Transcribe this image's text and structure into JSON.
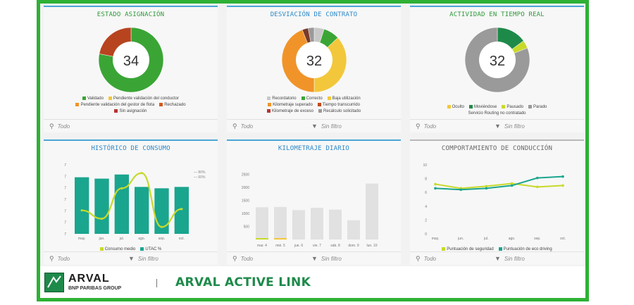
{
  "colors": {
    "accent_green": "#2eb135",
    "blue_title": "#2b89c9"
  },
  "panels": {
    "asignacion": {
      "title": "ESTADO ASIGNACIÓN",
      "center_value": "34",
      "legend": [
        {
          "label": "Validado",
          "color": "#3aa535"
        },
        {
          "label": "Pendiente validación del conductor",
          "color": "#f2c73b"
        },
        {
          "label": "Pendiente validación del gestor de flota",
          "color": "#f0942a"
        },
        {
          "label": "Rechazado",
          "color": "#d35a1b"
        },
        {
          "label": "Sin asignación",
          "color": "#b7352f"
        }
      ],
      "slices": [
        {
          "value": 0.78,
          "color": "#3aa535"
        },
        {
          "value": 0.22,
          "color": "#b7441e"
        }
      ],
      "footer_left": "Todo"
    },
    "desviacion": {
      "title": "DESVIACIÓN DE CONTRATO",
      "center_value": "32",
      "legend": [
        {
          "label": "Recordatorio",
          "color": "#c8c8c8"
        },
        {
          "label": "Correcto",
          "color": "#3aa535"
        },
        {
          "label": "Baja utilización",
          "color": "#f2c73b"
        },
        {
          "label": "Kilometraje superado",
          "color": "#f0942a"
        },
        {
          "label": "Tiempo transcurrido",
          "color": "#c44a1c"
        },
        {
          "label": "Kilometraje de exceso",
          "color": "#b7352f"
        },
        {
          "label": "Recálculo solicitado",
          "color": "#9a9a9a"
        }
      ],
      "slices": [
        {
          "value": 0.05,
          "color": "#c8c8c8"
        },
        {
          "value": 0.08,
          "color": "#3aa535"
        },
        {
          "value": 0.37,
          "color": "#f2c73b"
        },
        {
          "value": 0.44,
          "color": "#f0942a"
        },
        {
          "value": 0.03,
          "color": "#7a3a2a"
        },
        {
          "value": 0.03,
          "color": "#9a9a9a"
        }
      ],
      "footer_left": "Todo",
      "footer_right": "Sin filtro"
    },
    "actividad": {
      "title": "ACTIVIDAD EN TIEMPO REAL",
      "center_value": "32",
      "legend": [
        {
          "label": "Oculto",
          "color": "#f2c73b"
        },
        {
          "label": "Moviéndose",
          "color": "#1e8a4a"
        },
        {
          "label": "Pausado",
          "color": "#c8d92a"
        },
        {
          "label": "Parado",
          "color": "#9a9a9a"
        }
      ],
      "legend_extra": "Servicio Routing no contratado",
      "slices": [
        {
          "value": 0.15,
          "color": "#1e8a4a"
        },
        {
          "value": 0.04,
          "color": "#c8d92a"
        },
        {
          "value": 0.81,
          "color": "#9a9a9a"
        }
      ],
      "footer_left": "Todo",
      "footer_right": "Sin filtro"
    },
    "historico": {
      "title": "HISTÓRICO DE CONSUMO",
      "legend": [
        {
          "label": "Consumo medio",
          "color": "#c8d92a"
        },
        {
          "label": "UTAC %",
          "color": "#1aa58f"
        }
      ],
      "side_legend": [
        "— 80%",
        "— 60%"
      ],
      "footer_left": "Todo",
      "footer_right": "Sin filtro"
    },
    "kilometraje": {
      "title": "KILOMETRAJE DIARIO",
      "footer_left": "Todo",
      "footer_right": "Sin filtro"
    },
    "comportamiento": {
      "title": "COMPORTAMIENTO DE CONDUCCIÓN",
      "legend": [
        {
          "label": "Puntuación de seguridad",
          "color": "#c8d92a"
        },
        {
          "label": "Puntuación de eco driving",
          "color": "#1aa58f"
        }
      ],
      "footer_left": "Todo",
      "footer_right": "Sin filtro"
    }
  },
  "chart_data": [
    {
      "type": "bar",
      "title": "HISTÓRICO DE CONSUMO",
      "categories": [
        "may.",
        "jun.",
        "jul.",
        "ago.",
        "sep.",
        "oct."
      ],
      "series": [
        {
          "name": "UTAC %",
          "type": "bar",
          "values": [
            7.6,
            7.5,
            7.8,
            6.9,
            6.8,
            6.9
          ]
        },
        {
          "name": "Consumo medio",
          "type": "line",
          "values": [
            5.2,
            4.6,
            6.8,
            7.9,
            4.0,
            5.3
          ]
        }
      ],
      "yticks": [
        "7",
        "7",
        "7",
        "7",
        "7",
        "7",
        "7"
      ],
      "ylim": [
        3.5,
        8.5
      ]
    },
    {
      "type": "bar",
      "title": "KILOMETRAJE DIARIO",
      "categories": [
        "mar. 4",
        "mié. 5",
        "jue. 6",
        "vie. 7",
        "sáb. 8",
        "dom. 9",
        "lun. 10"
      ],
      "values": [
        1240,
        1250,
        1130,
        1220,
        1150,
        740,
        2150
      ],
      "yticks": [
        "2500",
        "2000",
        "1500",
        "1000",
        "500"
      ],
      "ylim": [
        0,
        2600
      ]
    },
    {
      "type": "line",
      "title": "COMPORTAMIENTO DE CONDUCCIÓN",
      "categories": [
        "may.",
        "jun.",
        "jul.",
        "ago.",
        "sep.",
        "oct."
      ],
      "series": [
        {
          "name": "Puntuación de seguridad",
          "values": [
            7.2,
            6.6,
            6.9,
            7.3,
            6.8,
            7.0
          ]
        },
        {
          "name": "Puntuación de eco driving",
          "values": [
            6.6,
            6.4,
            6.6,
            7.0,
            8.1,
            8.3
          ]
        }
      ],
      "yticks": [
        "10",
        "8",
        "6",
        "4",
        "2",
        "0"
      ],
      "ylim": [
        0,
        10
      ]
    }
  ],
  "brand": {
    "name": "ARVAL",
    "group": "BNP PARIBAS GROUP",
    "product": "ARVAL ACTIVE LINK"
  }
}
